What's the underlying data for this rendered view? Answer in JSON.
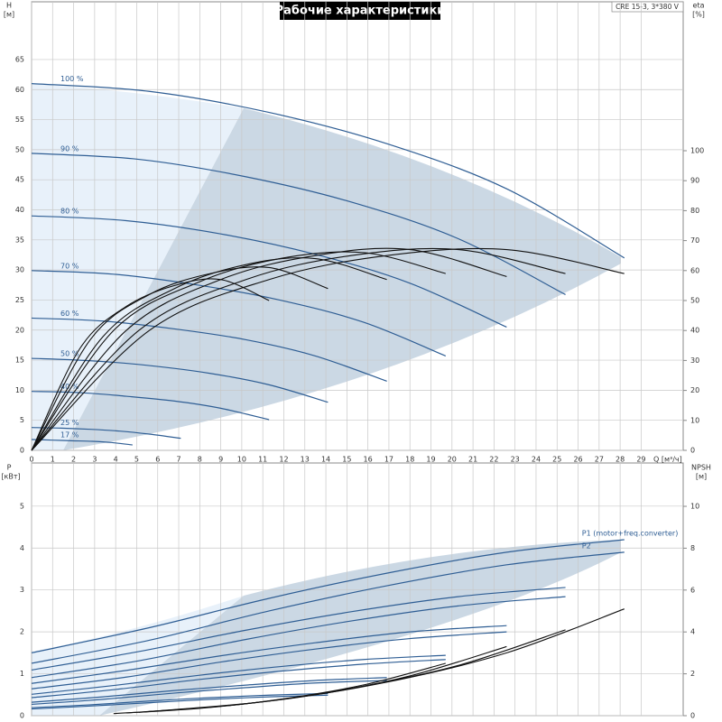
{
  "chart_data": [
    {
      "type": "line",
      "title": "Рабочие характеристики",
      "model": "CRE 15-3, 3*380 V",
      "y_label": "H",
      "y_unit": "[м]",
      "y2_label": "eta",
      "y2_unit": "[%]",
      "x_label": "Q [м³/ч]",
      "xlim": [
        0,
        31
      ],
      "xticks": [
        0,
        1,
        2,
        3,
        4,
        5,
        6,
        7,
        8,
        9,
        10,
        11,
        12,
        13,
        14,
        15,
        16,
        17,
        18,
        19,
        20,
        21,
        22,
        23,
        24,
        25,
        26,
        27,
        28,
        29
      ],
      "ylim": [
        0,
        74.6
      ],
      "yticks": [
        0,
        5,
        10,
        15,
        20,
        25,
        30,
        35,
        40,
        45,
        50,
        55,
        60,
        65
      ],
      "y2lim": [
        0,
        149.7
      ],
      "y2ticks": [
        0,
        10,
        20,
        30,
        40,
        50,
        60,
        70,
        80,
        90,
        100
      ],
      "grid": true,
      "series": [
        {
          "label": "100 %",
          "color": "#2f5e94",
          "x": [
            0,
            5.6,
            11.3,
            16.9,
            22.6,
            28.2
          ],
          "values": [
            61,
            59.7,
            56.2,
            51,
            43.5,
            32
          ]
        },
        {
          "label": "90 %",
          "color": "#2f5e94",
          "x": [
            0,
            5.1,
            10.2,
            15.2,
            20.3,
            25.4
          ],
          "values": [
            49.4,
            48.4,
            45.5,
            41.3,
            35.2,
            25.9
          ]
        },
        {
          "label": "80 %",
          "color": "#2f5e94",
          "x": [
            0,
            4.5,
            9,
            13.5,
            18,
            22.6
          ],
          "values": [
            39,
            38.2,
            36,
            32.6,
            27.8,
            20.5
          ]
        },
        {
          "label": "70 %",
          "color": "#2f5e94",
          "x": [
            0,
            3.9,
            7.9,
            11.8,
            15.8,
            19.7
          ],
          "values": [
            29.9,
            29.3,
            27.5,
            25,
            21.3,
            15.7
          ]
        },
        {
          "label": "60 %",
          "color": "#2f5e94",
          "x": [
            0,
            3.4,
            6.8,
            10.2,
            13.5,
            16.9
          ],
          "values": [
            22,
            21.5,
            20.2,
            18.4,
            15.7,
            11.5
          ]
        },
        {
          "label": "50 %",
          "color": "#2f5e94",
          "x": [
            0,
            2.8,
            5.6,
            8.5,
            11.3,
            14.1
          ],
          "values": [
            15.3,
            14.9,
            14.1,
            12.8,
            10.9,
            8
          ]
        },
        {
          "label": "40 %",
          "color": "#2f5e94",
          "x": [
            0,
            2.3,
            4.5,
            6.8,
            9,
            11.3
          ],
          "values": [
            9.8,
            9.6,
            9,
            8.2,
            7,
            5.1
          ]
        },
        {
          "label": "25 %",
          "color": "#2f5e94",
          "x": [
            0,
            1.4,
            2.8,
            4.2,
            5.6,
            7.1
          ],
          "values": [
            3.8,
            3.7,
            3.5,
            3.2,
            2.7,
            2
          ]
        },
        {
          "label": "17 %",
          "color": "#2f5e94",
          "x": [
            0,
            1,
            1.9,
            2.9,
            3.8,
            4.8
          ],
          "values": [
            1.8,
            1.7,
            1.6,
            1.5,
            1.3,
            0.9
          ]
        },
        {
          "axis": "y2",
          "color": "#111111",
          "x": [
            0,
            5.6,
            11.3,
            16.9,
            22.6,
            28.2
          ],
          "values": [
            0,
            40,
            57,
            65,
            67,
            59
          ]
        },
        {
          "axis": "y2",
          "color": "#111111",
          "x": [
            0,
            5.1,
            10.2,
            15.2,
            20.3,
            25.4
          ],
          "values": [
            0,
            40,
            57,
            65,
            67,
            59
          ]
        },
        {
          "axis": "y2",
          "color": "#111111",
          "x": [
            0,
            4.5,
            9,
            13.5,
            18,
            22.6
          ],
          "values": [
            0,
            40,
            57,
            65,
            67,
            58
          ]
        },
        {
          "axis": "y2",
          "color": "#111111",
          "x": [
            0,
            3.9,
            7.9,
            11.8,
            15.8,
            19.7
          ],
          "values": [
            0,
            40,
            56,
            64,
            66,
            59
          ]
        },
        {
          "axis": "y2",
          "color": "#111111",
          "x": [
            0,
            3.4,
            6.8,
            10.2,
            13.5,
            16.9
          ],
          "values": [
            0,
            38,
            54,
            62,
            64,
            57
          ]
        },
        {
          "axis": "y2",
          "color": "#111111",
          "x": [
            0,
            2.8,
            5.6,
            8.5,
            11.3,
            14.1
          ],
          "values": [
            0,
            37,
            52,
            59,
            61,
            54
          ]
        },
        {
          "axis": "y2",
          "color": "#111111",
          "x": [
            0,
            2.3,
            4.5,
            6.8,
            9,
            11.3
          ],
          "values": [
            0,
            34,
            48,
            55,
            57,
            50
          ]
        }
      ]
    },
    {
      "type": "line",
      "y_label": "P",
      "y_unit": "[кВт]",
      "y2_label": "NPSH",
      "y2_unit": "[м]",
      "xlim": [
        0,
        31
      ],
      "ylim": [
        0,
        6.03
      ],
      "yticks": [
        0,
        1,
        2,
        3,
        4,
        5
      ],
      "y2lim": [
        0,
        12.07
      ],
      "y2ticks": [
        0,
        2,
        4,
        6,
        8,
        10
      ],
      "grid": true,
      "series": [
        {
          "label": "P1 (motor+freq.converter)",
          "color": "#2f5e94",
          "x": [
            0,
            5.6,
            11.3,
            16.9,
            22.6,
            28.2
          ],
          "values": [
            1.5,
            2.1,
            2.8,
            3.4,
            3.9,
            4.2
          ]
        },
        {
          "label": "P2",
          "color": "#2f5e94",
          "x": [
            0,
            5.6,
            11.3,
            16.9,
            22.6,
            28.2
          ],
          "values": [
            1.25,
            1.8,
            2.5,
            3.1,
            3.6,
            3.9
          ]
        },
        {
          "color": "#2f5e94",
          "x": [
            0,
            5.1,
            10.2,
            15.2,
            20.3,
            25.4
          ],
          "values": [
            1.09,
            1.53,
            2.04,
            2.48,
            2.84,
            3.06
          ]
        },
        {
          "color": "#2f5e94",
          "x": [
            0,
            5.1,
            10.2,
            15.2,
            20.3,
            25.4
          ],
          "values": [
            0.91,
            1.31,
            1.82,
            2.26,
            2.62,
            2.84
          ]
        },
        {
          "color": "#2f5e94",
          "x": [
            0,
            4.5,
            9,
            13.5,
            18,
            22.6
          ],
          "values": [
            0.77,
            1.08,
            1.43,
            1.74,
            2.0,
            2.15
          ]
        },
        {
          "color": "#2f5e94",
          "x": [
            0,
            4.5,
            9,
            13.5,
            18,
            22.6
          ],
          "values": [
            0.64,
            0.92,
            1.28,
            1.59,
            1.84,
            2.0
          ]
        },
        {
          "color": "#2f5e94",
          "x": [
            0,
            3.9,
            7.9,
            11.8,
            15.8,
            19.7
          ],
          "values": [
            0.51,
            0.72,
            0.96,
            1.17,
            1.34,
            1.44
          ]
        },
        {
          "color": "#2f5e94",
          "x": [
            0,
            3.9,
            7.9,
            11.8,
            15.8,
            19.7
          ],
          "values": [
            0.43,
            0.62,
            0.86,
            1.06,
            1.23,
            1.34
          ]
        },
        {
          "color": "#2f5e94",
          "x": [
            0,
            3.4,
            6.8,
            10.2,
            13.5,
            16.9
          ],
          "values": [
            0.32,
            0.45,
            0.6,
            0.73,
            0.84,
            0.91
          ]
        },
        {
          "color": "#2f5e94",
          "x": [
            0,
            3.4,
            6.8,
            10.2,
            13.5,
            16.9
          ],
          "values": [
            0.27,
            0.39,
            0.54,
            0.67,
            0.78,
            0.84
          ]
        },
        {
          "color": "#2f5e94",
          "x": [
            0,
            2.8,
            5.6,
            8.5,
            11.3,
            14.1
          ],
          "values": [
            0.19,
            0.26,
            0.35,
            0.43,
            0.49,
            0.53
          ]
        },
        {
          "color": "#2f5e94",
          "x": [
            0,
            2.8,
            5.6,
            8.5,
            11.3,
            14.1
          ],
          "values": [
            0.16,
            0.23,
            0.31,
            0.39,
            0.45,
            0.49
          ]
        },
        {
          "axis": "y2",
          "color": "#111111",
          "x": [
            5.6,
            11.3,
            16.9,
            22.6,
            28.2
          ],
          "values": [
            0.2,
            0.7,
            1.6,
            3.0,
            5.1
          ]
        },
        {
          "axis": "y2",
          "color": "#111111",
          "x": [
            5.1,
            10.2,
            15.2,
            20.3,
            25.4
          ],
          "values": [
            0.16,
            0.57,
            1.3,
            2.4,
            4.1
          ]
        },
        {
          "axis": "y2",
          "color": "#111111",
          "x": [
            4.5,
            9,
            13.5,
            18,
            22.6
          ],
          "values": [
            0.13,
            0.45,
            1.0,
            1.9,
            3.3
          ]
        },
        {
          "axis": "y2",
          "color": "#111111",
          "x": [
            3.9,
            7.9,
            11.8,
            15.8,
            19.7
          ],
          "values": [
            0.1,
            0.34,
            0.78,
            1.47,
            2.5
          ]
        }
      ]
    }
  ]
}
